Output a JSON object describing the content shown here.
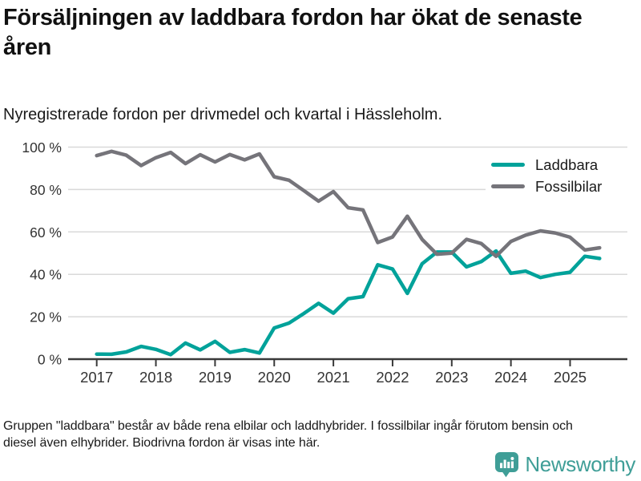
{
  "header": {
    "title": "Försäljningen av laddbara fordon har ökat de senaste åren",
    "subtitle": "Nyregistrerade fordon per drivmedel och kvartal i Hässleholm."
  },
  "chart_data": {
    "type": "line",
    "x_unit": "quarter",
    "x_range": "2017 Q1 – 2025 Q3",
    "xticklabels": [
      "2017",
      "2018",
      "2019",
      "2020",
      "2021",
      "2022",
      "2023",
      "2024",
      "2025"
    ],
    "yticks": [
      {
        "value": 0,
        "label": "0 %"
      },
      {
        "value": 20,
        "label": "20 %"
      },
      {
        "value": 40,
        "label": "40 %"
      },
      {
        "value": 60,
        "label": "60 %"
      },
      {
        "value": 80,
        "label": "80 %"
      },
      {
        "value": 100,
        "label": "100 %"
      }
    ],
    "ylim": [
      0,
      100
    ],
    "grid": "horizontal",
    "legend_position": "top-right",
    "series": [
      {
        "name": "Laddbara",
        "color": "#00a29a",
        "values": [
          2.4,
          2.3,
          3.4,
          6,
          4.6,
          2.1,
          7.6,
          4.4,
          8.4,
          3.2,
          4.5,
          2.9,
          14.7,
          17,
          21.5,
          26.3,
          21.7,
          28.5,
          29.5,
          44.5,
          42.5,
          31,
          45,
          50.5,
          50.5,
          43.5,
          46,
          51,
          40.5,
          41.5,
          38.5,
          40,
          41,
          48.5,
          47.5
        ]
      },
      {
        "name": "Fossilbilar",
        "color": "#75747a",
        "values": [
          96,
          98,
          96.2,
          91.3,
          95,
          97.5,
          92.2,
          96.4,
          93,
          96.5,
          94,
          96.8,
          86,
          84.4,
          79.5,
          74.5,
          79,
          71.4,
          70.4,
          55,
          57.6,
          67.4,
          56.5,
          49.5,
          50,
          56.5,
          54.5,
          48.5,
          55.5,
          58.5,
          60.5,
          59.5,
          57.5,
          51.5,
          52.5
        ]
      }
    ]
  },
  "footer": {
    "caption": "Gruppen \"laddbara\" består av både rena elbilar och laddhybrider. I fossilbilar ingår förutom bensin och diesel även elhybrider. Biodrivna fordon är visas inte här.",
    "brand": "Newsworthy"
  },
  "colors": {
    "accent_teal": "#00a29a",
    "line_gray": "#75747a",
    "brand_teal": "#3f9e97",
    "grid": "#d9d9d9",
    "axis": "#3a3a3a",
    "text": "#1a1a1a"
  }
}
